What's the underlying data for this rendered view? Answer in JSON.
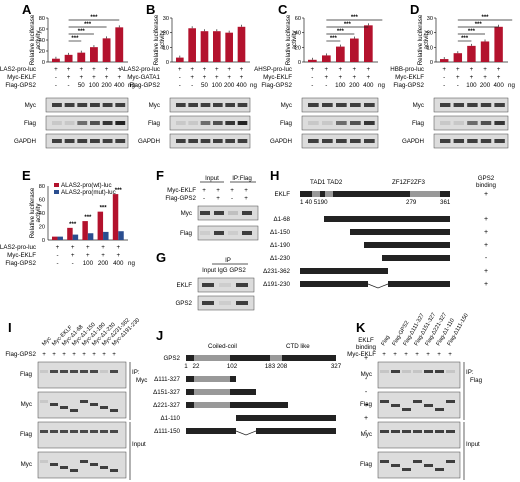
{
  "figure": {
    "panels": {
      "A": {
        "letter": "A",
        "ylabel": [
          "Relative luciferase",
          "activity"
        ],
        "rows": [
          "ALAS2-pro-luc",
          "Myc-EKLF",
          "Flag-GPS2"
        ],
        "row_vals": [
          [
            "+",
            "+",
            "+",
            "+",
            "+",
            "+"
          ],
          [
            "-",
            "+",
            "+",
            "+",
            "+",
            "+"
          ],
          [
            "-",
            "-",
            "50",
            "100",
            "200",
            "400"
          ]
        ],
        "unit": "ng",
        "blots": [
          "Myc",
          "Flag",
          "GAPDH"
        ],
        "sig": [
          "***",
          "***",
          "***",
          "***"
        ]
      },
      "B": {
        "letter": "B",
        "ylabel": [
          "Relative luciferase",
          "activity"
        ],
        "rows": [
          "ALAS2-pro-luc",
          "Myc-GATA1",
          "Flag-GPS2"
        ],
        "row_vals": [
          [
            "+",
            "+",
            "+",
            "+",
            "+",
            "+"
          ],
          [
            "-",
            "+",
            "+",
            "+",
            "+",
            "+"
          ],
          [
            "-",
            "-",
            "50",
            "100",
            "200",
            "400"
          ]
        ],
        "unit": "ng",
        "blots": [
          "Myc",
          "Flag",
          "GAPDH"
        ]
      },
      "C": {
        "letter": "C",
        "ylabel": [
          "Relative luciferase",
          "activity"
        ],
        "rows": [
          "AHSP-pro-luc",
          "Myc-EKLF",
          "Flag-GPS2"
        ],
        "row_vals": [
          [
            "+",
            "+",
            "+",
            "+",
            "+"
          ],
          [
            "-",
            "+",
            "+",
            "+",
            "+"
          ],
          [
            "-",
            "-",
            "100",
            "200",
            "400"
          ]
        ],
        "unit": "ng",
        "blots": [
          "Myc",
          "Flag",
          "GAPDH"
        ],
        "sig": [
          "***",
          "***",
          "***",
          "***"
        ]
      },
      "D": {
        "letter": "D",
        "ylabel": [
          "Relative luciferase",
          "activity"
        ],
        "rows": [
          "HBB-pro-luc",
          "Myc-EKLF",
          "Flag-GPS2"
        ],
        "row_vals": [
          [
            "+",
            "+",
            "+",
            "+",
            "+"
          ],
          [
            "-",
            "+",
            "+",
            "+",
            "+"
          ],
          [
            "-",
            "-",
            "100",
            "200",
            "400"
          ]
        ],
        "unit": "ng",
        "blots": [
          "Myc",
          "Flag",
          "GAPDH"
        ],
        "sig": [
          "***",
          "***",
          "***",
          "***"
        ]
      },
      "E": {
        "letter": "E",
        "ylabel": [
          "Relative luciferase",
          "activity"
        ],
        "legend": [
          "ALAS2-pro(wt)-luc",
          "ALAS2-pro(mut)-luc"
        ],
        "rows": [
          "ALAS2-pro-luc",
          "Myc-EKLF",
          "Flag-GPS2"
        ],
        "row_vals": [
          [
            "+",
            "+",
            "+",
            "+",
            "+"
          ],
          [
            "-",
            "+",
            "+",
            "+",
            "+"
          ],
          [
            "-",
            "-",
            "100",
            "200",
            "400"
          ]
        ],
        "unit": "ng",
        "sig": [
          "***",
          "***",
          "***",
          "***"
        ]
      },
      "F": {
        "letter": "F",
        "headers": [
          "Input",
          "IP:Flag"
        ],
        "rows": [
          "Myc-EKLF",
          "Flag-GPS2"
        ],
        "row_vals": [
          [
            "+",
            "+",
            "+",
            "+"
          ],
          [
            "-",
            "+",
            "-",
            "+"
          ]
        ],
        "blots": [
          "Myc",
          "Flag"
        ]
      },
      "G": {
        "letter": "G",
        "ip": "IP",
        "lanes": "Input IgG GPS2",
        "blots": [
          "EKLF",
          "GPS2"
        ]
      },
      "H": {
        "letter": "H",
        "domains": "TAD1 TAD2",
        "zf": "ZF1ZF2ZF3",
        "binding": [
          "GPS2",
          "binding"
        ],
        "protein": "EKLF",
        "nums": "1 40 5190",
        "nums2": "279",
        "nums3": "361",
        "constructs": [
          "Δ1-68",
          "Δ1-150",
          "Δ1-190",
          "Δ1-230",
          "Δ231-362",
          "Δ191-230"
        ],
        "binding_vals": [
          "+",
          "+",
          "+",
          "+",
          "-",
          "+",
          "+"
        ]
      },
      "I": {
        "letter": "I",
        "lanes": [
          "Myc",
          "Myc-EKLF",
          "Myc-Δ1-68",
          "Myc-Δ1-150",
          "Myc-Δ1-190",
          "Myc-Δ1-230",
          "Myc-Δ231-362",
          "Myc-Δ191-230"
        ],
        "row": "Flag-GPS2",
        "row_vals": [
          "+",
          "+",
          "+",
          "+",
          "+",
          "+",
          "+",
          "+"
        ],
        "blots": [
          "Flag",
          "Myc",
          "Flag",
          "Myc"
        ],
        "ip": [
          "IP:",
          "Myc"
        ],
        "input": "Input"
      },
      "J": {
        "letter": "J",
        "domains": [
          "Coiled-coil",
          "CTD like"
        ],
        "binding": [
          "EKLF",
          "binding"
        ],
        "protein": "GPS2",
        "nums": [
          "1",
          "22",
          "102",
          "183",
          "208",
          "327"
        ],
        "constructs": [
          "Δ111-327",
          "Δ151-327",
          "Δ221-327",
          "Δ1-110",
          "Δ111-150"
        ],
        "binding_vals": [
          "+",
          "-",
          "-",
          "+",
          "+",
          "-"
        ]
      },
      "K": {
        "letter": "K",
        "lanes": [
          "Flag",
          "Flag-GPS2",
          "Flag-Δ111-327",
          "Flag-Δ151-327",
          "Flag-Δ221-327",
          "Flag-Δ1-110",
          "Flag-Δ111-150"
        ],
        "row": "Myc-EKLF",
        "row_vals": [
          "+",
          "+",
          "+",
          "+",
          "+",
          "+",
          "+"
        ],
        "blots": [
          "Myc",
          "Flag",
          "Myc",
          "Flag"
        ],
        "ip": [
          "IP:",
          "Flag"
        ],
        "input": "Input"
      }
    }
  },
  "chart_data": [
    {
      "panel": "A",
      "type": "bar",
      "categories": [
        "1",
        "2",
        "3",
        "4",
        "5",
        "6"
      ],
      "values": [
        6,
        13,
        17,
        27,
        43,
        63
      ],
      "ylabel": "Relative luciferase activity",
      "ylim": [
        0,
        80
      ]
    },
    {
      "panel": "B",
      "type": "bar",
      "categories": [
        "1",
        "2",
        "3",
        "4",
        "5",
        "6"
      ],
      "values": [
        3,
        23,
        21,
        21,
        20,
        24
      ],
      "ylabel": "Relative luciferase activity",
      "ylim": [
        0,
        30
      ]
    },
    {
      "panel": "C",
      "type": "bar",
      "categories": [
        "1",
        "2",
        "3",
        "4",
        "5"
      ],
      "values": [
        3,
        9,
        21,
        32,
        50
      ],
      "ylabel": "Relative luciferase activity",
      "ylim": [
        0,
        60
      ]
    },
    {
      "panel": "D",
      "type": "bar",
      "categories": [
        "1",
        "2",
        "3",
        "4",
        "5"
      ],
      "values": [
        2,
        6,
        11,
        14,
        24
      ],
      "ylabel": "Relative luciferase activity",
      "ylim": [
        0,
        30
      ]
    },
    {
      "panel": "E",
      "type": "bar",
      "categories": [
        "1",
        "2",
        "3",
        "4",
        "5"
      ],
      "series": [
        {
          "name": "ALAS2-pro(wt)-luc",
          "values": [
            5,
            18,
            28,
            42,
            68
          ]
        },
        {
          "name": "ALAS2-pro(mut)-luc",
          "values": [
            5,
            8,
            10,
            12,
            13
          ]
        }
      ],
      "ylabel": "Relative luciferase activity",
      "ylim": [
        0,
        80
      ]
    }
  ]
}
